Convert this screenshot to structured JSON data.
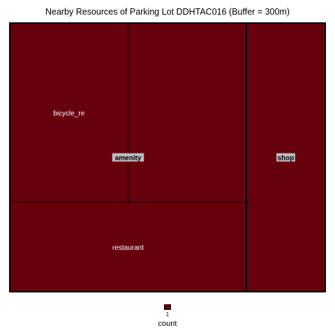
{
  "chart_data": {
    "type": "treemap",
    "title": "Nearby Resources of Parking Lot DDHTAC016 (Buffer = 300m)",
    "fill_color": "#67000d",
    "groups": [
      {
        "name": "amenity",
        "items": [
          {
            "name": "bicycle_re",
            "count": 1
          },
          {
            "name": "",
            "count": 1
          },
          {
            "name": "restaurant",
            "count": 1
          }
        ]
      },
      {
        "name": "shop",
        "items": [
          {
            "name": "",
            "count": 1
          }
        ]
      }
    ],
    "legend": {
      "title": "count",
      "ticks": [
        "1"
      ]
    }
  }
}
